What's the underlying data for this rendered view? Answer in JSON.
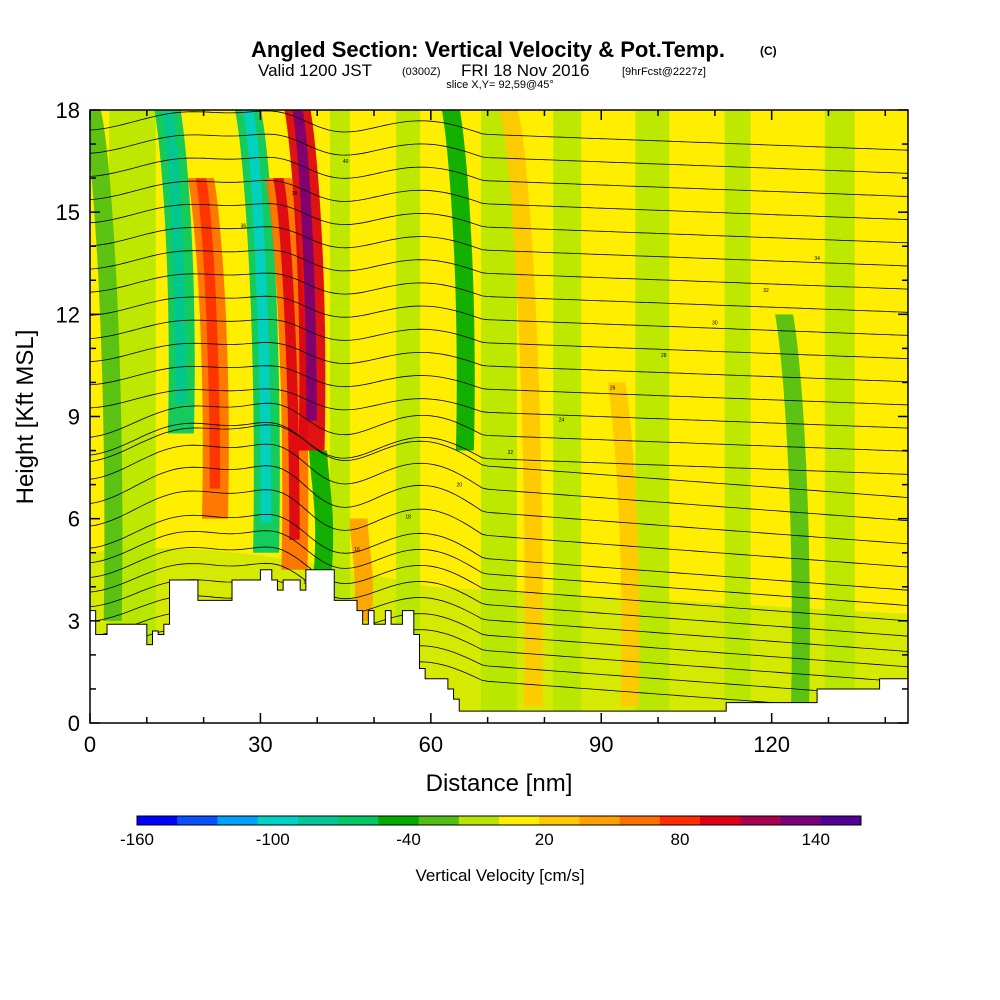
{
  "header": {
    "title": "Angled Section: Vertical Velocity & Pot.Temp.",
    "title_unit": "(C)",
    "valid_prefix": "Valid 1200 JST",
    "valid_utc": "(0300Z)",
    "valid_date": "FRI 18 Nov 2016",
    "forecast_tag": "[9hrFcst@2227z]",
    "slice_info": "slice X,Y= 92,59@45°"
  },
  "chart_data": {
    "type": "heatmap",
    "xlabel": "Distance [nm]",
    "ylabel": "Height [Kft MSL]",
    "xlim": [
      0,
      144
    ],
    "ylim": [
      0,
      18
    ],
    "x_ticks": [
      0,
      30,
      60,
      90,
      120
    ],
    "y_ticks": [
      0,
      3,
      6,
      9,
      12,
      15,
      18
    ],
    "grid": false,
    "colorbar": {
      "label": "Vertical Velocity [cm/s]",
      "range": [
        -160,
        160
      ],
      "tick_values": [
        -160,
        -100,
        -40,
        20,
        80,
        140
      ],
      "colors": [
        "#0000ff",
        "#0a50ff",
        "#00a0ff",
        "#00d2c8",
        "#00c896",
        "#00c864",
        "#00aa00",
        "#50be14",
        "#b4e600",
        "#ffee00",
        "#ffc800",
        "#ffa000",
        "#ff6e00",
        "#ff2d00",
        "#dc0014",
        "#aa0050",
        "#780078",
        "#500096"
      ]
    },
    "terrain_top_kft": [
      {
        "x": 0,
        "y": 3.3
      },
      {
        "x": 1,
        "y": 2.6
      },
      {
        "x": 3,
        "y": 2.9
      },
      {
        "x": 9,
        "y": 2.9
      },
      {
        "x": 10,
        "y": 2.3
      },
      {
        "x": 11,
        "y": 2.7
      },
      {
        "x": 12,
        "y": 2.6
      },
      {
        "x": 13,
        "y": 2.9
      },
      {
        "x": 14,
        "y": 4.2
      },
      {
        "x": 17,
        "y": 4.2
      },
      {
        "x": 19,
        "y": 3.6
      },
      {
        "x": 23,
        "y": 3.6
      },
      {
        "x": 25,
        "y": 4.2
      },
      {
        "x": 28,
        "y": 4.2
      },
      {
        "x": 30,
        "y": 4.5
      },
      {
        "x": 32,
        "y": 4.2
      },
      {
        "x": 33,
        "y": 3.9
      },
      {
        "x": 34,
        "y": 4.2
      },
      {
        "x": 37,
        "y": 3.9
      },
      {
        "x": 38,
        "y": 4.5
      },
      {
        "x": 42,
        "y": 4.5
      },
      {
        "x": 43,
        "y": 3.6
      },
      {
        "x": 46,
        "y": 3.6
      },
      {
        "x": 47,
        "y": 3.3
      },
      {
        "x": 48,
        "y": 2.9
      },
      {
        "x": 49,
        "y": 3.3
      },
      {
        "x": 50,
        "y": 2.9
      },
      {
        "x": 52,
        "y": 3.3
      },
      {
        "x": 53,
        "y": 2.9
      },
      {
        "x": 55,
        "y": 3.3
      },
      {
        "x": 57,
        "y": 2.6
      },
      {
        "x": 58,
        "y": 1.6
      },
      {
        "x": 59,
        "y": 1.3
      },
      {
        "x": 62,
        "y": 1.3
      },
      {
        "x": 63,
        "y": 1.0
      },
      {
        "x": 64,
        "y": 0.7
      },
      {
        "x": 65,
        "y": 0.35
      },
      {
        "x": 109,
        "y": 0.35
      },
      {
        "x": 112,
        "y": 0.6
      },
      {
        "x": 127,
        "y": 0.6
      },
      {
        "x": 128,
        "y": 1.0
      },
      {
        "x": 138,
        "y": 1.0
      },
      {
        "x": 139,
        "y": 1.3
      },
      {
        "x": 144,
        "y": 1.3
      }
    ],
    "velocity_features_cm_s": [
      {
        "x": 4,
        "y_min": 3,
        "y_max": 18,
        "value": -20
      },
      {
        "x": 16,
        "y_min": 8.5,
        "y_max": 18,
        "value": -60
      },
      {
        "x": 22,
        "y_min": 6,
        "y_max": 16,
        "value": 60
      },
      {
        "x": 31,
        "y_min": 5,
        "y_max": 18,
        "value": -70
      },
      {
        "x": 36,
        "y_min": 4.5,
        "y_max": 16,
        "value": 70
      },
      {
        "x": 39,
        "y_min": 8,
        "y_max": 18,
        "value": 100
      },
      {
        "x": 41,
        "y_min": 4.5,
        "y_max": 8,
        "value": -40
      },
      {
        "x": 48,
        "y_min": 3,
        "y_max": 6,
        "value": 50
      },
      {
        "x": 66,
        "y_min": 8,
        "y_max": 18,
        "value": -50
      },
      {
        "x": 78,
        "y_min": 0.5,
        "y_max": 18,
        "value": 30
      },
      {
        "x": 95,
        "y_min": 0.5,
        "y_max": 10,
        "value": 30
      },
      {
        "x": 125,
        "y_min": 0.5,
        "y_max": 12,
        "value": -30
      }
    ],
    "isentropes_pot_temp_c": {
      "count": 28,
      "visible_labels": [
        "10",
        "12",
        "14",
        "16",
        "18",
        "20",
        "22",
        "24",
        "26",
        "28",
        "30",
        "32",
        "34",
        "36",
        "38",
        "40"
      ]
    }
  }
}
